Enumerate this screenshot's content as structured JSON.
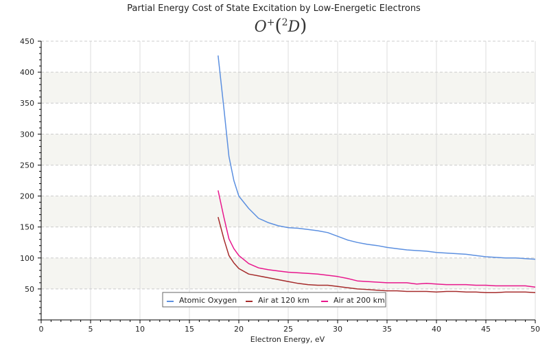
{
  "chart_data": {
    "type": "line",
    "title": "Partial Energy Cost of State Excitation by Low-Energetic Electrons",
    "subtitle": {
      "base": "O",
      "sup": "+",
      "paren_sup": "2",
      "term": "D"
    },
    "xlabel": "Electron Energy, eV",
    "ylabel": "",
    "xlim": [
      0,
      50
    ],
    "ylim": [
      0,
      450
    ],
    "xticks": [
      0,
      5,
      10,
      15,
      20,
      25,
      30,
      35,
      40,
      45,
      50
    ],
    "yticks": [
      50,
      100,
      150,
      200,
      250,
      300,
      350,
      400,
      450
    ],
    "grid": true,
    "legend_position": "bottom-center",
    "series": [
      {
        "name": "Atomic Oxygen",
        "color": "#5b8fe0",
        "x": [
          17.9,
          18.5,
          19,
          19.5,
          20,
          21,
          22,
          23,
          24,
          25,
          26,
          27,
          28,
          29,
          30,
          31,
          32,
          33,
          34,
          35,
          36,
          37,
          38,
          39,
          40,
          41,
          42,
          43,
          44,
          45,
          46,
          47,
          48,
          49,
          50
        ],
        "y": [
          427,
          340,
          264,
          225,
          200,
          180,
          164,
          157,
          152,
          149,
          148,
          146,
          144,
          141,
          135,
          129,
          125,
          122,
          120,
          117,
          115,
          113,
          112,
          111,
          109,
          108,
          107,
          106,
          104,
          102,
          101,
          100,
          100,
          99,
          98
        ]
      },
      {
        "name": "Air at 120 km",
        "color": "#a52a2a",
        "x": [
          17.9,
          18.5,
          19,
          19.5,
          20,
          21,
          22,
          23,
          24,
          25,
          26,
          27,
          28,
          29,
          30,
          31,
          32,
          33,
          34,
          35,
          36,
          37,
          38,
          39,
          40,
          41,
          42,
          43,
          44,
          45,
          46,
          47,
          48,
          49,
          50
        ],
        "y": [
          166,
          130,
          104,
          92,
          83,
          74,
          71,
          68,
          65,
          62,
          59,
          57,
          56,
          56,
          54,
          52,
          50,
          49,
          48,
          47,
          47,
          46,
          46,
          46,
          45,
          46,
          46,
          45,
          45,
          44,
          44,
          45,
          45,
          45,
          44
        ]
      },
      {
        "name": "Air at 200 km",
        "color": "#e8168c",
        "x": [
          17.9,
          18.5,
          19,
          19.5,
          20,
          21,
          22,
          23,
          24,
          25,
          26,
          27,
          28,
          29,
          30,
          31,
          32,
          33,
          34,
          35,
          36,
          37,
          38,
          39,
          40,
          41,
          42,
          43,
          44,
          45,
          46,
          47,
          48,
          49,
          50
        ],
        "y": [
          209,
          165,
          131,
          115,
          104,
          91,
          84,
          81,
          79,
          77,
          76,
          75,
          74,
          72,
          70,
          67,
          63,
          62,
          61,
          60,
          60,
          60,
          58,
          59,
          58,
          57,
          57,
          57,
          56,
          56,
          55,
          55,
          55,
          55,
          53
        ]
      }
    ]
  }
}
